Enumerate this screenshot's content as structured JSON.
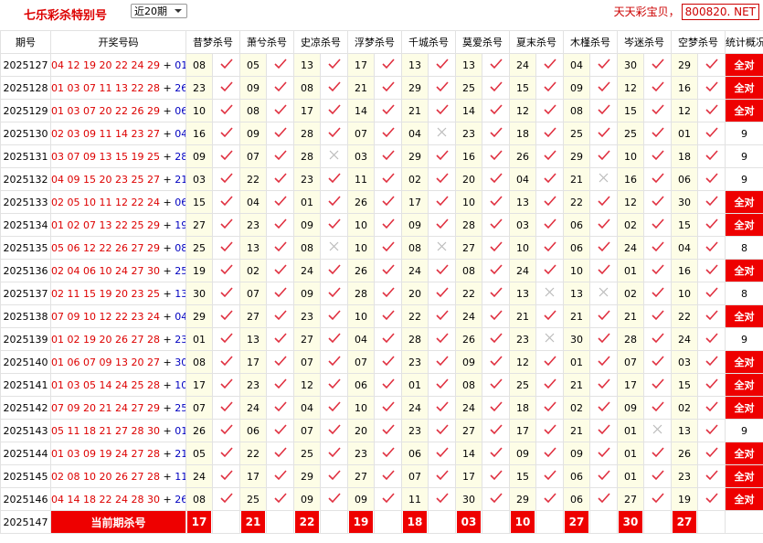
{
  "header": {
    "title": "七乐彩杀特别号",
    "select": "近20期",
    "site_text": "天天彩宝贝，",
    "site_box": "800820. NET"
  },
  "table": {
    "headers": [
      "期号",
      "开奖号码",
      "昔梦杀号",
      "萧兮杀号",
      "史凉杀号",
      "浮梦杀号",
      "千城杀号",
      "莫爱杀号",
      "夏末杀号",
      "木槿杀号",
      "岑迷杀号",
      "空梦杀号",
      "统计概况"
    ],
    "plus": "+",
    "rows": [
      {
        "period": "2025127",
        "numbers": [
          "04",
          "12",
          "19",
          "20",
          "22",
          "24",
          "29"
        ],
        "special": "01",
        "kills": [
          "08",
          "05",
          "13",
          "17",
          "13",
          "13",
          "24",
          "04",
          "30",
          "29"
        ],
        "ok": [
          true,
          true,
          true,
          true,
          true,
          true,
          true,
          true,
          true,
          true
        ],
        "stat": "全对"
      },
      {
        "period": "2025128",
        "numbers": [
          "01",
          "03",
          "07",
          "11",
          "13",
          "22",
          "28"
        ],
        "special": "26",
        "kills": [
          "23",
          "09",
          "08",
          "21",
          "29",
          "25",
          "15",
          "09",
          "12",
          "16"
        ],
        "ok": [
          true,
          true,
          true,
          true,
          true,
          true,
          true,
          true,
          true,
          true
        ],
        "stat": "全对"
      },
      {
        "period": "2025129",
        "numbers": [
          "01",
          "03",
          "07",
          "20",
          "22",
          "26",
          "29"
        ],
        "special": "06",
        "kills": [
          "10",
          "08",
          "17",
          "14",
          "21",
          "14",
          "12",
          "08",
          "15",
          "12"
        ],
        "ok": [
          true,
          true,
          true,
          true,
          true,
          true,
          true,
          true,
          true,
          true
        ],
        "stat": "全对"
      },
      {
        "period": "2025130",
        "numbers": [
          "02",
          "03",
          "09",
          "11",
          "14",
          "23",
          "27"
        ],
        "special": "04",
        "kills": [
          "16",
          "09",
          "28",
          "07",
          "04",
          "23",
          "18",
          "25",
          "25",
          "01"
        ],
        "ok": [
          true,
          true,
          true,
          true,
          false,
          true,
          true,
          true,
          true,
          true
        ],
        "stat": "9"
      },
      {
        "period": "2025131",
        "numbers": [
          "03",
          "07",
          "09",
          "13",
          "15",
          "19",
          "25"
        ],
        "special": "28",
        "kills": [
          "09",
          "07",
          "28",
          "03",
          "29",
          "16",
          "26",
          "29",
          "10",
          "18"
        ],
        "ok": [
          true,
          true,
          false,
          true,
          true,
          true,
          true,
          true,
          true,
          true
        ],
        "stat": "9"
      },
      {
        "period": "2025132",
        "numbers": [
          "04",
          "09",
          "15",
          "20",
          "23",
          "25",
          "27"
        ],
        "special": "21",
        "kills": [
          "03",
          "22",
          "23",
          "11",
          "02",
          "20",
          "04",
          "21",
          "16",
          "06"
        ],
        "ok": [
          true,
          true,
          true,
          true,
          true,
          true,
          true,
          false,
          true,
          true
        ],
        "stat": "9"
      },
      {
        "period": "2025133",
        "numbers": [
          "02",
          "05",
          "10",
          "11",
          "12",
          "22",
          "24"
        ],
        "special": "06",
        "kills": [
          "15",
          "04",
          "01",
          "26",
          "17",
          "10",
          "13",
          "22",
          "12",
          "30"
        ],
        "ok": [
          true,
          true,
          true,
          true,
          true,
          true,
          true,
          true,
          true,
          true
        ],
        "stat": "全对"
      },
      {
        "period": "2025134",
        "numbers": [
          "01",
          "02",
          "07",
          "13",
          "22",
          "25",
          "29"
        ],
        "special": "19",
        "kills": [
          "27",
          "23",
          "09",
          "10",
          "09",
          "28",
          "03",
          "06",
          "02",
          "15"
        ],
        "ok": [
          true,
          true,
          true,
          true,
          true,
          true,
          true,
          true,
          true,
          true
        ],
        "stat": "全对"
      },
      {
        "period": "2025135",
        "numbers": [
          "05",
          "06",
          "12",
          "22",
          "26",
          "27",
          "29"
        ],
        "special": "08",
        "kills": [
          "25",
          "13",
          "08",
          "10",
          "08",
          "27",
          "10",
          "06",
          "24",
          "04"
        ],
        "ok": [
          true,
          true,
          false,
          true,
          false,
          true,
          true,
          true,
          true,
          true
        ],
        "stat": "8"
      },
      {
        "period": "2025136",
        "numbers": [
          "02",
          "04",
          "06",
          "10",
          "24",
          "27",
          "30"
        ],
        "special": "25",
        "kills": [
          "19",
          "02",
          "24",
          "26",
          "24",
          "08",
          "24",
          "10",
          "01",
          "16"
        ],
        "ok": [
          true,
          true,
          true,
          true,
          true,
          true,
          true,
          true,
          true,
          true
        ],
        "stat": "全对"
      },
      {
        "period": "2025137",
        "numbers": [
          "02",
          "11",
          "15",
          "19",
          "20",
          "23",
          "25"
        ],
        "special": "13",
        "kills": [
          "30",
          "07",
          "09",
          "28",
          "20",
          "22",
          "13",
          "13",
          "02",
          "10"
        ],
        "ok": [
          true,
          true,
          true,
          true,
          true,
          true,
          false,
          false,
          true,
          true
        ],
        "stat": "8"
      },
      {
        "period": "2025138",
        "numbers": [
          "07",
          "09",
          "10",
          "12",
          "22",
          "23",
          "24"
        ],
        "special": "04",
        "kills": [
          "29",
          "27",
          "23",
          "10",
          "22",
          "24",
          "21",
          "21",
          "21",
          "22"
        ],
        "ok": [
          true,
          true,
          true,
          true,
          true,
          true,
          true,
          true,
          true,
          true
        ],
        "stat": "全对"
      },
      {
        "period": "2025139",
        "numbers": [
          "01",
          "02",
          "19",
          "20",
          "26",
          "27",
          "28"
        ],
        "special": "23",
        "kills": [
          "01",
          "13",
          "27",
          "04",
          "28",
          "26",
          "23",
          "30",
          "28",
          "24"
        ],
        "ok": [
          true,
          true,
          true,
          true,
          true,
          true,
          false,
          true,
          true,
          true
        ],
        "stat": "9"
      },
      {
        "period": "2025140",
        "numbers": [
          "01",
          "06",
          "07",
          "09",
          "13",
          "20",
          "27"
        ],
        "special": "30",
        "kills": [
          "08",
          "17",
          "07",
          "07",
          "23",
          "09",
          "12",
          "01",
          "07",
          "03"
        ],
        "ok": [
          true,
          true,
          true,
          true,
          true,
          true,
          true,
          true,
          true,
          true
        ],
        "stat": "全对"
      },
      {
        "period": "2025141",
        "numbers": [
          "01",
          "03",
          "05",
          "14",
          "24",
          "25",
          "28"
        ],
        "special": "10",
        "kills": [
          "17",
          "23",
          "12",
          "06",
          "01",
          "08",
          "25",
          "21",
          "17",
          "15"
        ],
        "ok": [
          true,
          true,
          true,
          true,
          true,
          true,
          true,
          true,
          true,
          true
        ],
        "stat": "全对"
      },
      {
        "period": "2025142",
        "numbers": [
          "07",
          "09",
          "20",
          "21",
          "24",
          "27",
          "29"
        ],
        "special": "25",
        "kills": [
          "07",
          "24",
          "04",
          "10",
          "24",
          "24",
          "18",
          "02",
          "09",
          "02"
        ],
        "ok": [
          true,
          true,
          true,
          true,
          true,
          true,
          true,
          true,
          true,
          true
        ],
        "stat": "全对"
      },
      {
        "period": "2025143",
        "numbers": [
          "05",
          "11",
          "18",
          "21",
          "27",
          "28",
          "30"
        ],
        "special": "01",
        "kills": [
          "26",
          "06",
          "07",
          "20",
          "23",
          "27",
          "17",
          "21",
          "01",
          "13"
        ],
        "ok": [
          true,
          true,
          true,
          true,
          true,
          true,
          true,
          true,
          false,
          true
        ],
        "stat": "9"
      },
      {
        "period": "2025144",
        "numbers": [
          "01",
          "03",
          "09",
          "19",
          "24",
          "27",
          "28"
        ],
        "special": "21",
        "kills": [
          "05",
          "22",
          "25",
          "23",
          "06",
          "14",
          "09",
          "09",
          "01",
          "26"
        ],
        "ok": [
          true,
          true,
          true,
          true,
          true,
          true,
          true,
          true,
          true,
          true
        ],
        "stat": "全对"
      },
      {
        "period": "2025145",
        "numbers": [
          "02",
          "08",
          "10",
          "20",
          "26",
          "27",
          "28"
        ],
        "special": "11",
        "kills": [
          "24",
          "17",
          "29",
          "27",
          "07",
          "17",
          "15",
          "06",
          "01",
          "23"
        ],
        "ok": [
          true,
          true,
          true,
          true,
          true,
          true,
          true,
          true,
          true,
          true
        ],
        "stat": "全对"
      },
      {
        "period": "2025146",
        "numbers": [
          "04",
          "14",
          "18",
          "22",
          "24",
          "28",
          "30"
        ],
        "special": "26",
        "kills": [
          "08",
          "25",
          "09",
          "09",
          "11",
          "30",
          "29",
          "06",
          "27",
          "19"
        ],
        "ok": [
          true,
          true,
          true,
          true,
          true,
          true,
          true,
          true,
          true,
          true
        ],
        "stat": "全对"
      }
    ]
  },
  "current": {
    "period": "2025147",
    "label": "当前期杀号",
    "kills": [
      "17",
      "21",
      "22",
      "19",
      "18",
      "03",
      "10",
      "27",
      "30",
      "27"
    ]
  }
}
